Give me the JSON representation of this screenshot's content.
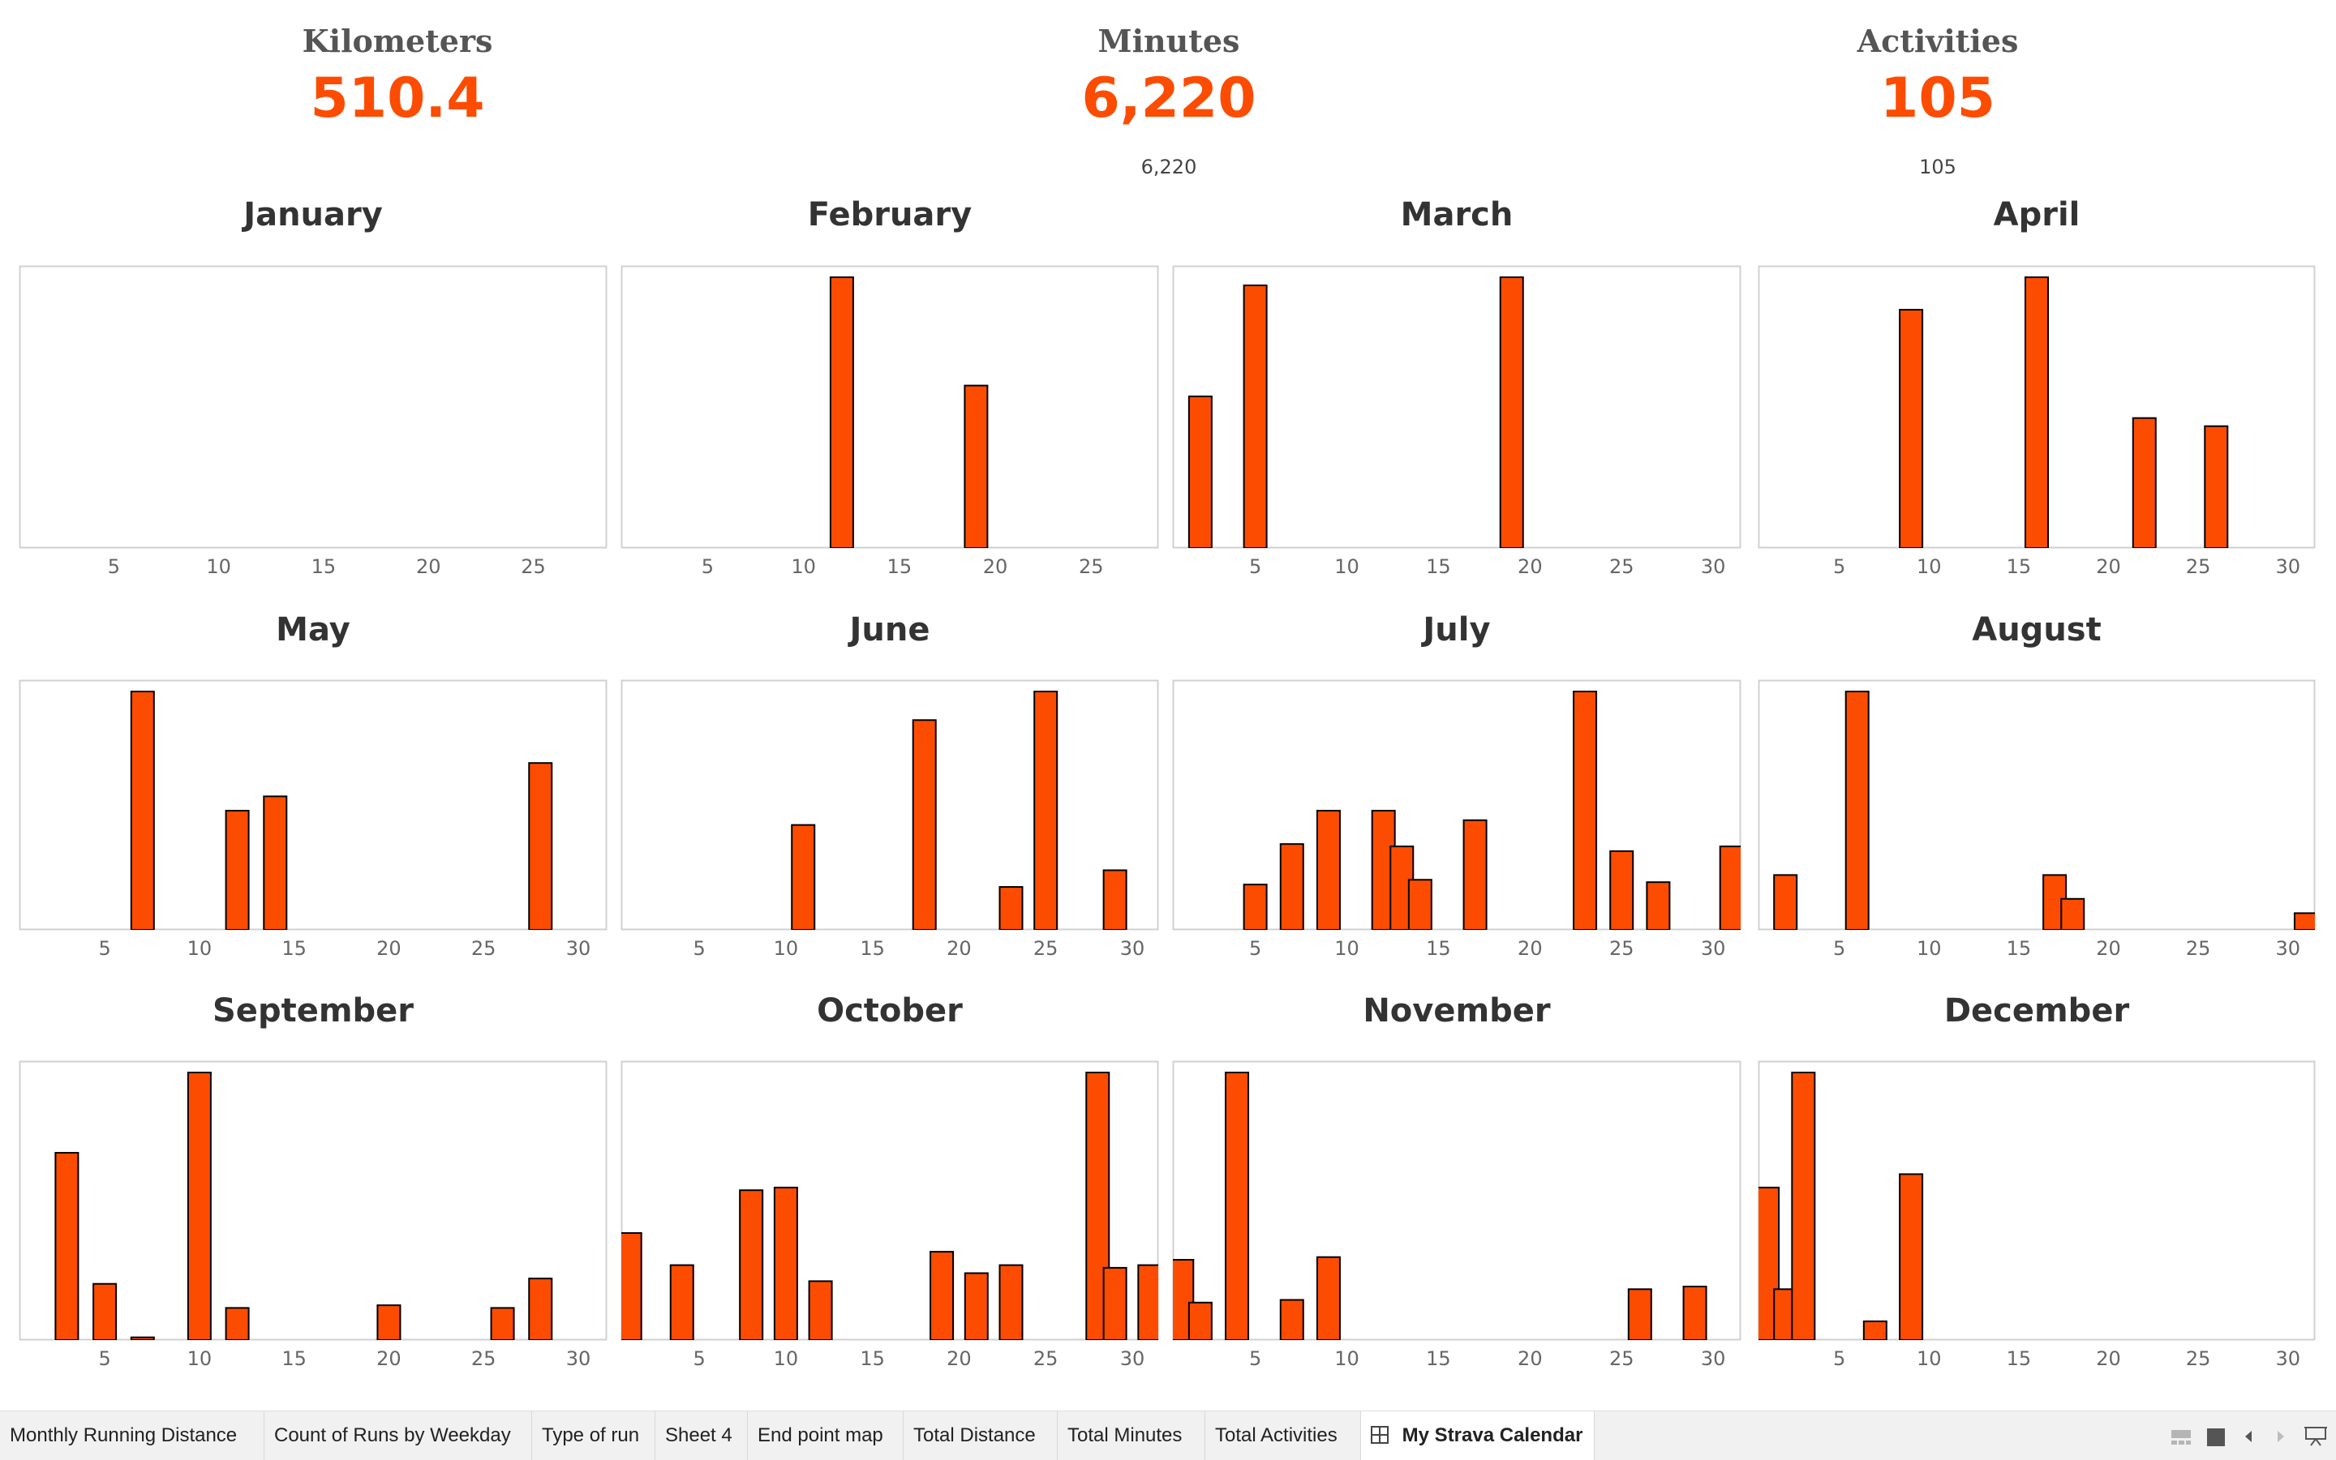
{
  "kpis": {
    "distance": {
      "title": "Kilometers",
      "value": "510.4",
      "sub": ""
    },
    "minutes": {
      "title": "Minutes",
      "value": "6,220",
      "sub": "6,220"
    },
    "activities": {
      "title": "Activities",
      "value": "105",
      "sub": "105"
    }
  },
  "colors": {
    "bar": "#fc4c02",
    "bar_stroke": "#000000",
    "frame": "#d0d0d0",
    "tick": "#666666"
  },
  "chart_data": [
    {
      "type": "bar",
      "title": "January",
      "xlim": [
        1,
        28
      ],
      "xticks": [
        5,
        10,
        15,
        20,
        25
      ],
      "ylim": [
        0,
        1
      ],
      "grid": false,
      "x": [],
      "values": []
    },
    {
      "type": "bar",
      "title": "February",
      "xlim": [
        1,
        28
      ],
      "xticks": [
        5,
        10,
        15,
        20,
        25
      ],
      "ylim": [
        0,
        1
      ],
      "grid": false,
      "x": [
        12,
        19
      ],
      "values": [
        1.0,
        0.6
      ]
    },
    {
      "type": "bar",
      "title": "March",
      "xlim": [
        1,
        31
      ],
      "xticks": [
        5,
        10,
        15,
        20,
        25,
        30
      ],
      "ylim": [
        0,
        1
      ],
      "grid": false,
      "x": [
        2,
        5,
        19
      ],
      "values": [
        0.56,
        0.97,
        1.0
      ]
    },
    {
      "type": "bar",
      "title": "April",
      "xlim": [
        1,
        31
      ],
      "xticks": [
        5,
        10,
        15,
        20,
        25,
        30
      ],
      "ylim": [
        0,
        1
      ],
      "grid": false,
      "x": [
        9,
        16,
        22,
        26
      ],
      "values": [
        0.88,
        1.0,
        0.48,
        0.45
      ]
    },
    {
      "type": "bar",
      "title": "May",
      "xlim": [
        1,
        31
      ],
      "xticks": [
        5,
        10,
        15,
        20,
        25,
        30
      ],
      "ylim": [
        0,
        1
      ],
      "grid": false,
      "x": [
        7,
        12,
        14,
        28
      ],
      "values": [
        1.0,
        0.5,
        0.56,
        0.7
      ]
    },
    {
      "type": "bar",
      "title": "June",
      "xlim": [
        1,
        31
      ],
      "xticks": [
        5,
        10,
        15,
        20,
        25,
        30
      ],
      "ylim": [
        0,
        1
      ],
      "grid": false,
      "x": [
        11,
        18,
        23,
        25,
        29
      ],
      "values": [
        0.44,
        0.88,
        0.18,
        1.0,
        0.25
      ]
    },
    {
      "type": "bar",
      "title": "July",
      "xlim": [
        1,
        31
      ],
      "xticks": [
        5,
        10,
        15,
        20,
        25,
        30
      ],
      "ylim": [
        0,
        1
      ],
      "grid": false,
      "x": [
        5,
        7,
        9,
        12,
        13,
        14,
        17,
        23,
        25,
        27,
        31
      ],
      "values": [
        0.19,
        0.36,
        0.5,
        0.5,
        0.35,
        0.21,
        0.46,
        1.0,
        0.33,
        0.2,
        0.35
      ]
    },
    {
      "type": "bar",
      "title": "August",
      "xlim": [
        1,
        31
      ],
      "xticks": [
        5,
        10,
        15,
        20,
        25,
        30
      ],
      "ylim": [
        0,
        1
      ],
      "grid": false,
      "x": [
        2,
        6,
        17,
        18,
        31
      ],
      "values": [
        0.23,
        1.0,
        0.23,
        0.13,
        0.07
      ]
    },
    {
      "type": "bar",
      "title": "September",
      "xlim": [
        1,
        31
      ],
      "xticks": [
        5,
        10,
        15,
        20,
        25,
        30
      ],
      "ylim": [
        0,
        1
      ],
      "grid": false,
      "x": [
        3,
        5,
        7,
        10,
        12,
        20,
        26,
        28
      ],
      "values": [
        0.7,
        0.21,
        0.01,
        1.0,
        0.12,
        0.13,
        0.12,
        0.23
      ]
    },
    {
      "type": "bar",
      "title": "October",
      "xlim": [
        1,
        31
      ],
      "xticks": [
        5,
        10,
        15,
        20,
        25,
        30
      ],
      "ylim": [
        0,
        1
      ],
      "grid": false,
      "x": [
        1,
        4,
        8,
        10,
        12,
        19,
        21,
        23,
        28,
        29,
        31
      ],
      "values": [
        0.4,
        0.28,
        0.56,
        0.57,
        0.22,
        0.33,
        0.25,
        0.28,
        1.0,
        0.27,
        0.28
      ]
    },
    {
      "type": "bar",
      "title": "November",
      "xlim": [
        1,
        31
      ],
      "xticks": [
        5,
        10,
        15,
        20,
        25,
        30
      ],
      "ylim": [
        0,
        1
      ],
      "grid": false,
      "x": [
        1,
        2,
        4,
        7,
        9,
        26,
        29
      ],
      "values": [
        0.3,
        0.14,
        1.0,
        0.15,
        0.31,
        0.19,
        0.2
      ]
    },
    {
      "type": "bar",
      "title": "December",
      "xlim": [
        1,
        31
      ],
      "xticks": [
        5,
        10,
        15,
        20,
        25,
        30
      ],
      "ylim": [
        0,
        1
      ],
      "grid": false,
      "x": [
        1,
        2,
        3,
        7,
        9
      ],
      "values": [
        0.57,
        0.19,
        1.0,
        0.07,
        0.62
      ]
    }
  ],
  "tabs": [
    {
      "label": "Monthly Running Distance",
      "active": false
    },
    {
      "label": "Count of Runs by Weekday",
      "active": false
    },
    {
      "label": "Type of run",
      "active": false
    },
    {
      "label": "Sheet 4",
      "active": false
    },
    {
      "label": "End point map",
      "active": false
    },
    {
      "label": "Total Distance",
      "active": false
    },
    {
      "label": "Total Minutes",
      "active": false
    },
    {
      "label": "Total Activities",
      "active": false
    },
    {
      "label": "My Strava Calendar",
      "active": true,
      "icon": "grid-icon"
    }
  ],
  "controls": [
    "slide-sorter-icon",
    "filmstrip-icon",
    "prev-arrow-icon",
    "next-arrow-icon",
    "presentation-icon"
  ]
}
